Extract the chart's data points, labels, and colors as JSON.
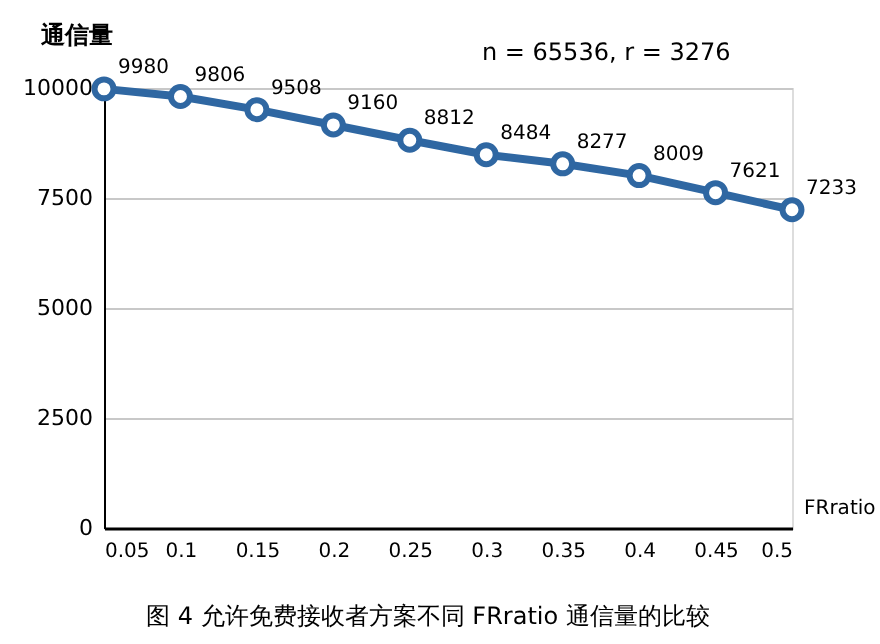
{
  "chart_data": {
    "type": "line",
    "title": "n = 65536, r = 3276",
    "xlabel": "FRratio",
    "ylabel": "通信量",
    "annotations": [
      "图 4 允许免费接收者方案不同 FRratio 通信量的比较"
    ],
    "x": [
      0.05,
      0.1,
      0.15,
      0.2,
      0.25,
      0.3,
      0.35,
      0.4,
      0.45,
      0.5
    ],
    "series": [
      {
        "color": "#2f67a2",
        "values": [
          9980,
          9806,
          9508,
          9160,
          8812,
          8484,
          8277,
          8009,
          7621,
          7233
        ]
      }
    ],
    "xlim": [
      0.05,
      0.5
    ],
    "xticks": [
      0.05,
      0.1,
      0.15,
      0.2,
      0.25,
      0.3,
      0.35,
      0.4,
      0.45,
      0.5
    ],
    "ylim": [
      0,
      10000
    ],
    "yticks": [
      0,
      2500,
      5000,
      7500,
      10000
    ],
    "grid": "y",
    "marker": "circle",
    "line_style": "solid",
    "data_labels": true
  }
}
